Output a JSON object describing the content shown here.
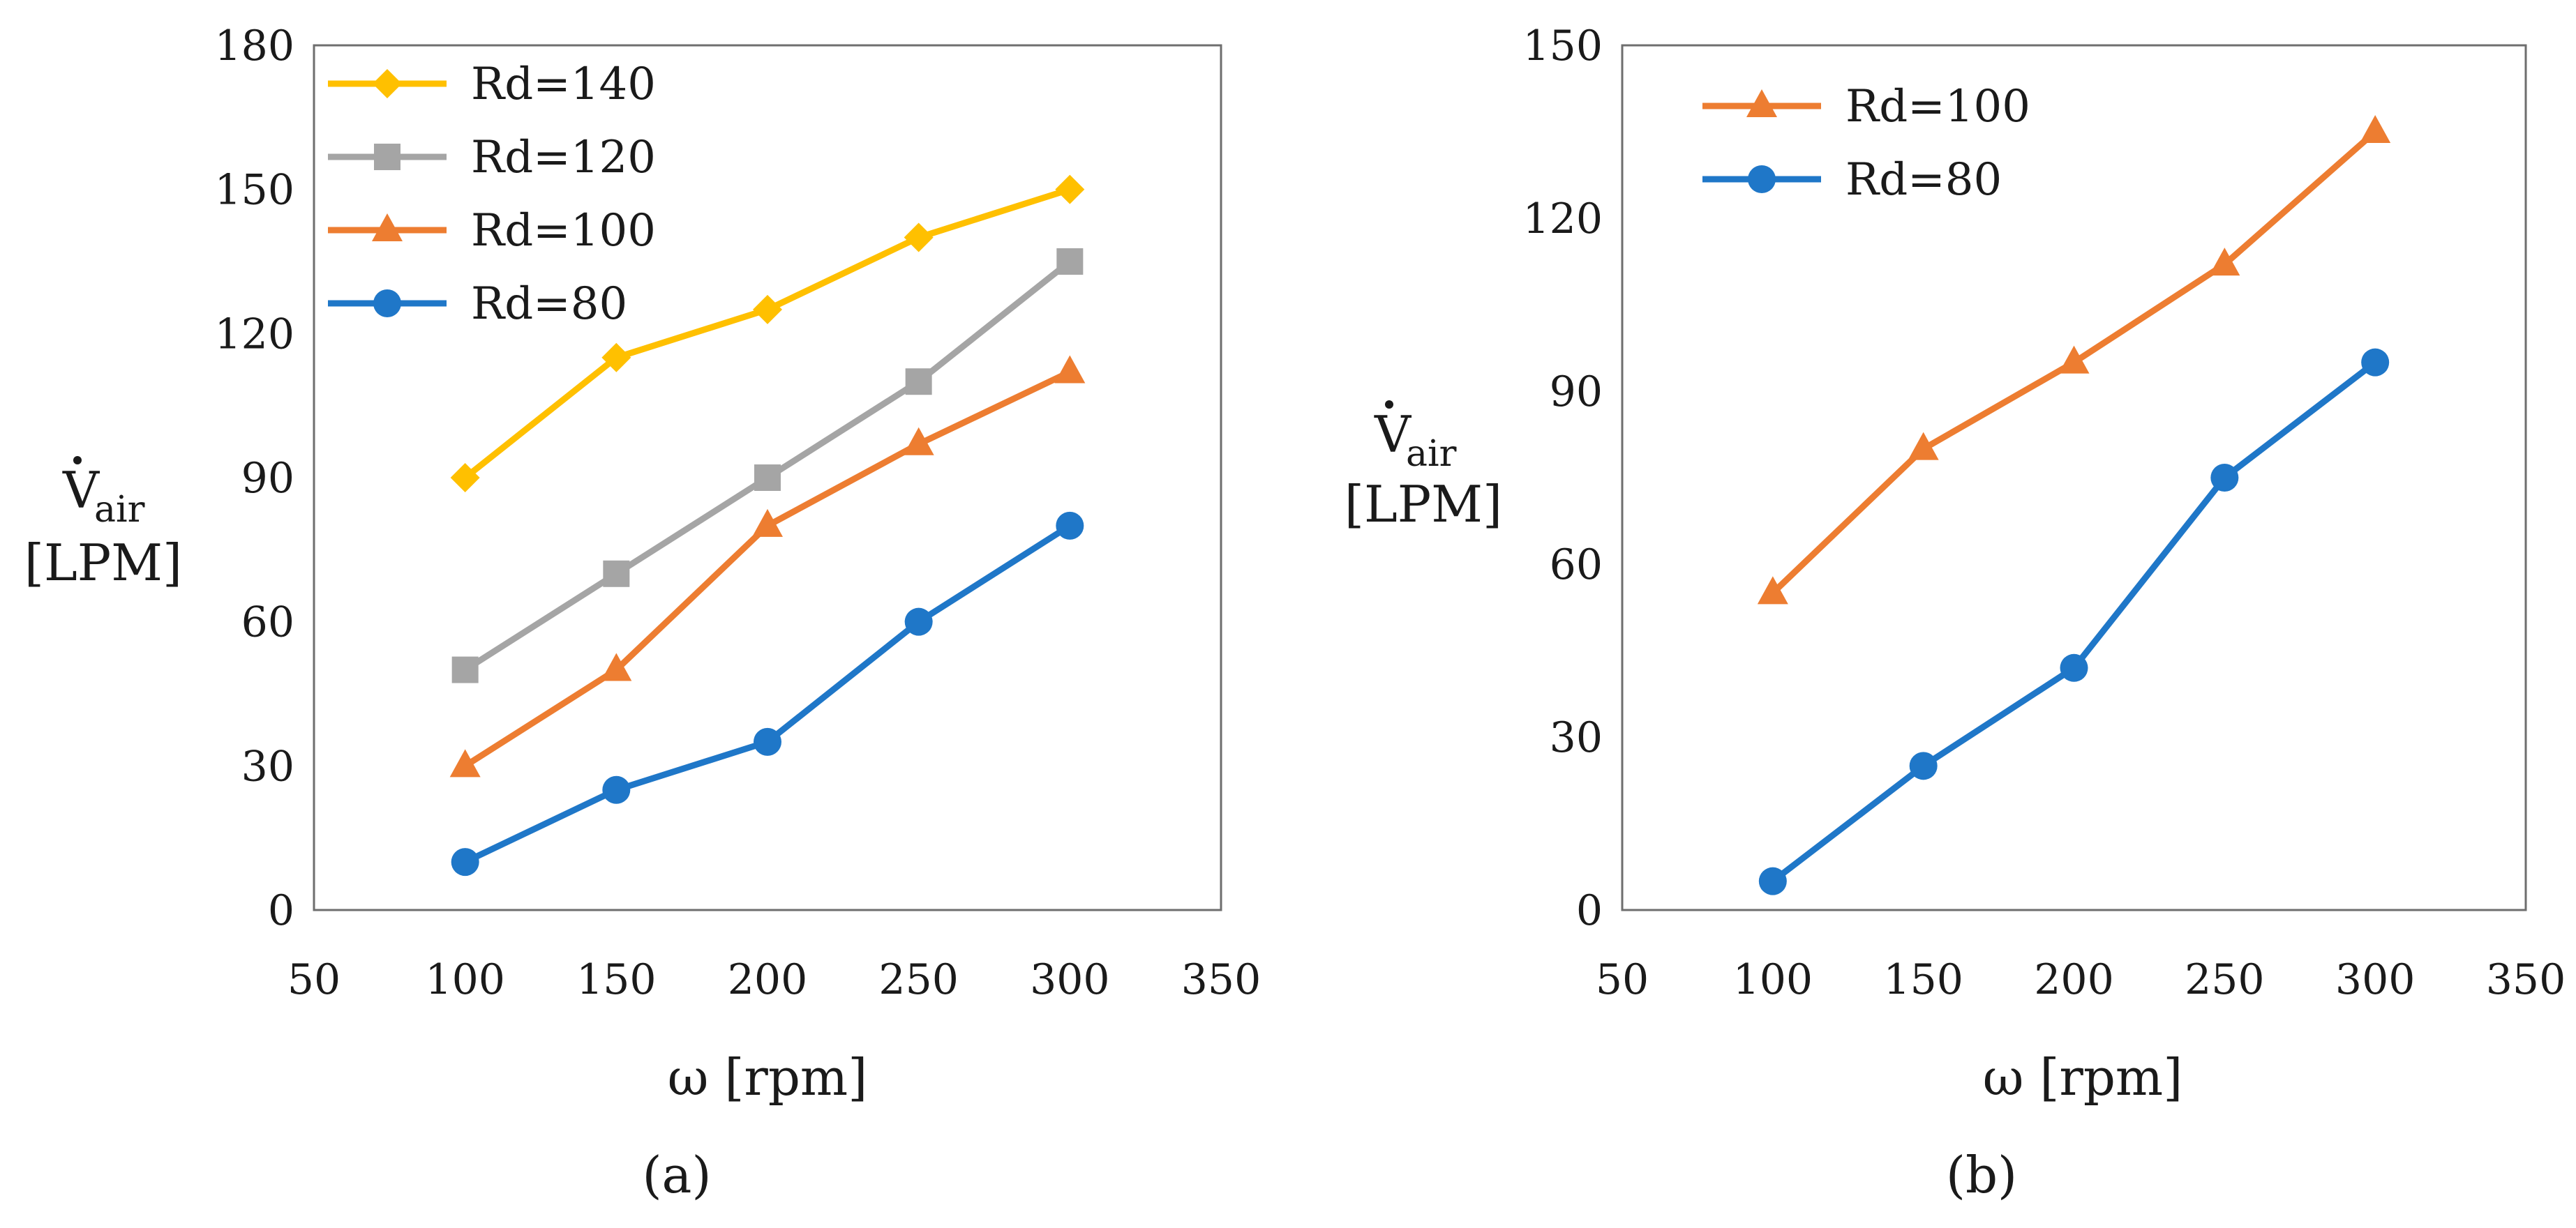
{
  "chart_data": [
    {
      "type": "line",
      "panel_label": "(a)",
      "xlabel": "ω [rpm]",
      "ylabel": {
        "symbol": "V",
        "subscript": "air",
        "unit": "[LPM]"
      },
      "xlim": [
        50,
        350
      ],
      "ylim": [
        0,
        180
      ],
      "xticks": [
        "50",
        "100",
        "150",
        "200",
        "250",
        "300",
        "350"
      ],
      "yticks": [
        "0",
        "30",
        "60",
        "90",
        "120",
        "150",
        "180"
      ],
      "grid": false,
      "legend_position": "top-left",
      "x": [
        100,
        150,
        200,
        250,
        300
      ],
      "series": [
        {
          "name": "Rd=140",
          "values": [
            90,
            115,
            125,
            140,
            150
          ],
          "color": "#FFC000",
          "marker": "diamond"
        },
        {
          "name": "Rd=120",
          "values": [
            50,
            70,
            90,
            110,
            135
          ],
          "color": "#A5A5A5",
          "marker": "square"
        },
        {
          "name": "Rd=100",
          "values": [
            30,
            50,
            80,
            97,
            112
          ],
          "color": "#ED7D31",
          "marker": "triangle"
        },
        {
          "name": "Rd=80",
          "values": [
            10,
            25,
            35,
            60,
            80
          ],
          "color": "#1F77C8",
          "marker": "circle"
        }
      ]
    },
    {
      "type": "line",
      "panel_label": "(b)",
      "xlabel": "ω [rpm]",
      "ylabel": {
        "symbol": "V",
        "subscript": "air",
        "unit": "[LPM]"
      },
      "xlim": [
        50,
        350
      ],
      "ylim": [
        0,
        150
      ],
      "xticks": [
        "50",
        "100",
        "150",
        "200",
        "250",
        "300",
        "350"
      ],
      "yticks": [
        "0",
        "30",
        "60",
        "90",
        "120",
        "150"
      ],
      "grid": false,
      "legend_position": "top-left",
      "x": [
        100,
        150,
        200,
        250,
        300
      ],
      "series": [
        {
          "name": "Rd=100",
          "values": [
            55,
            80,
            95,
            112,
            135
          ],
          "color": "#ED7D31",
          "marker": "triangle"
        },
        {
          "name": "Rd=80",
          "values": [
            5,
            25,
            42,
            75,
            95
          ],
          "color": "#1F77C8",
          "marker": "circle"
        }
      ]
    }
  ]
}
